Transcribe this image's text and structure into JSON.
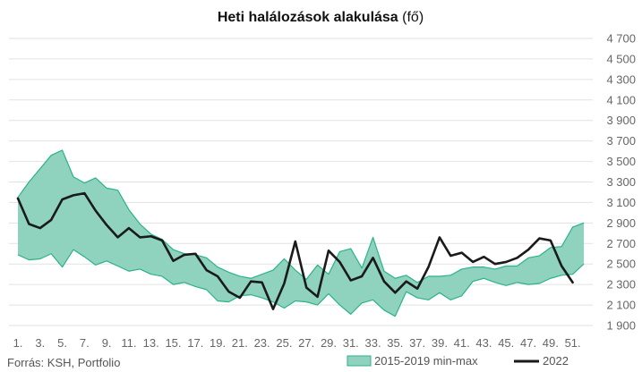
{
  "chart_data": {
    "type": "line",
    "title": "Heti halálozások alakulása",
    "title_unit": "(fő)",
    "source": "Forrás: KSH, Portfolio",
    "ylim": [
      1900,
      4700
    ],
    "y_ticks": [
      "4 700",
      "4 500",
      "4 300",
      "4 100",
      "3 900",
      "3 700",
      "3 500",
      "3 300",
      "3 100",
      "2 900",
      "2 700",
      "2 500",
      "2 300",
      "2 100",
      "1 900"
    ],
    "y_tick_values": [
      4700,
      4500,
      4300,
      4100,
      3900,
      3700,
      3500,
      3300,
      3100,
      2900,
      2700,
      2500,
      2300,
      2100,
      1900
    ],
    "x_ticks": [
      "1.",
      "3.",
      "5.",
      "7.",
      "9.",
      "11.",
      "13.",
      "15.",
      "17.",
      "19.",
      "21.",
      "23.",
      "25.",
      "27.",
      "29.",
      "31.",
      "33.",
      "35.",
      "37.",
      "39.",
      "41.",
      "43.",
      "45.",
      "47.",
      "49.",
      "51."
    ],
    "x_tick_values": [
      1,
      3,
      5,
      7,
      9,
      11,
      13,
      15,
      17,
      19,
      21,
      23,
      25,
      27,
      29,
      31,
      33,
      35,
      37,
      39,
      41,
      43,
      45,
      47,
      49,
      51
    ],
    "x": [
      1,
      2,
      3,
      4,
      5,
      6,
      7,
      8,
      9,
      10,
      11,
      12,
      13,
      14,
      15,
      16,
      17,
      18,
      19,
      20,
      21,
      22,
      23,
      24,
      25,
      26,
      27,
      28,
      29,
      30,
      31,
      32,
      33,
      34,
      35,
      36,
      37,
      38,
      39,
      40,
      41,
      42,
      43,
      44,
      45,
      46,
      47,
      48,
      49,
      50,
      51,
      52
    ],
    "band": {
      "name": "2015-2019 min-max",
      "color": "#8fd3be",
      "edge_color": "#2bb38a",
      "max": [
        3150,
        3300,
        3430,
        3560,
        3610,
        3350,
        3290,
        3340,
        3240,
        3220,
        3030,
        2890,
        2790,
        2740,
        2640,
        2600,
        2590,
        2560,
        2470,
        2420,
        2380,
        2360,
        2400,
        2440,
        2550,
        2440,
        2350,
        2490,
        2400,
        2620,
        2650,
        2460,
        2760,
        2430,
        2360,
        2390,
        2320,
        2380,
        2380,
        2390,
        2450,
        2470,
        2470,
        2450,
        2480,
        2480,
        2560,
        2580,
        2660,
        2670,
        2860,
        2900
      ],
      "min": [
        2590,
        2540,
        2550,
        2600,
        2470,
        2640,
        2570,
        2490,
        2530,
        2480,
        2430,
        2450,
        2400,
        2380,
        2300,
        2320,
        2280,
        2250,
        2140,
        2130,
        2190,
        2200,
        2170,
        2130,
        2070,
        2140,
        2130,
        2100,
        2210,
        2100,
        2010,
        2120,
        2150,
        2050,
        1990,
        2230,
        2170,
        2150,
        2220,
        2150,
        2190,
        2330,
        2360,
        2320,
        2290,
        2320,
        2300,
        2310,
        2360,
        2390,
        2400,
        2500
      ]
    },
    "series": [
      {
        "name": "2022",
        "color": "#1a1a1a",
        "values": [
          3140,
          2890,
          2850,
          2930,
          3130,
          3170,
          3190,
          3020,
          2880,
          2760,
          2850,
          2760,
          2770,
          2730,
          2530,
          2590,
          2600,
          2440,
          2380,
          2230,
          2170,
          2330,
          2320,
          2060,
          2310,
          2720,
          2270,
          2180,
          2630,
          2520,
          2340,
          2380,
          2560,
          2330,
          2220,
          2330,
          2260,
          2470,
          2760,
          2580,
          2610,
          2520,
          2570,
          2500,
          2520,
          2560,
          2640,
          2750,
          2730,
          2480,
          2320,
          null
        ]
      }
    ],
    "legend": [
      "2015-2019 min-max",
      "2022"
    ],
    "legend_position": "bottom-right",
    "grid": true
  }
}
